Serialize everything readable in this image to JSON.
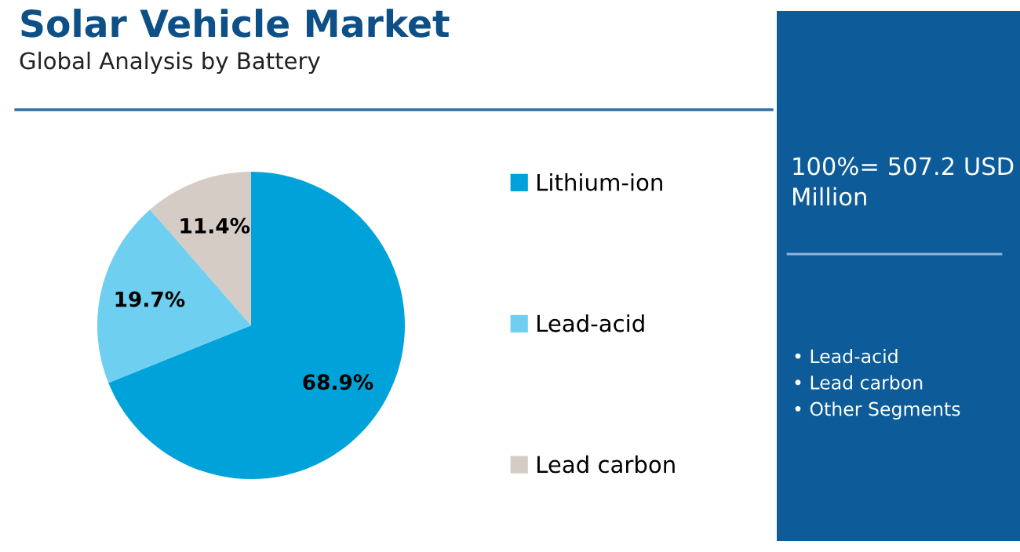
{
  "chart_data": {
    "type": "pie",
    "title": "Solar Vehicle Market",
    "subtitle": "Global Analysis by Battery",
    "categories": [
      "Lithium-ion",
      "Lead-acid",
      "Lead carbon"
    ],
    "values": [
      68.9,
      19.7,
      11.4
    ],
    "colors": [
      "#00a3d9",
      "#6fcff0",
      "#d6ccc6"
    ],
    "value_labels": [
      "68.9%",
      "19.7%",
      "11.4%"
    ],
    "legend": "right",
    "annotations": [
      "100%= 507.2 USD\nMillion",
      "• Lead-acid\n• Lead carbon\n• Other Segments"
    ]
  }
}
